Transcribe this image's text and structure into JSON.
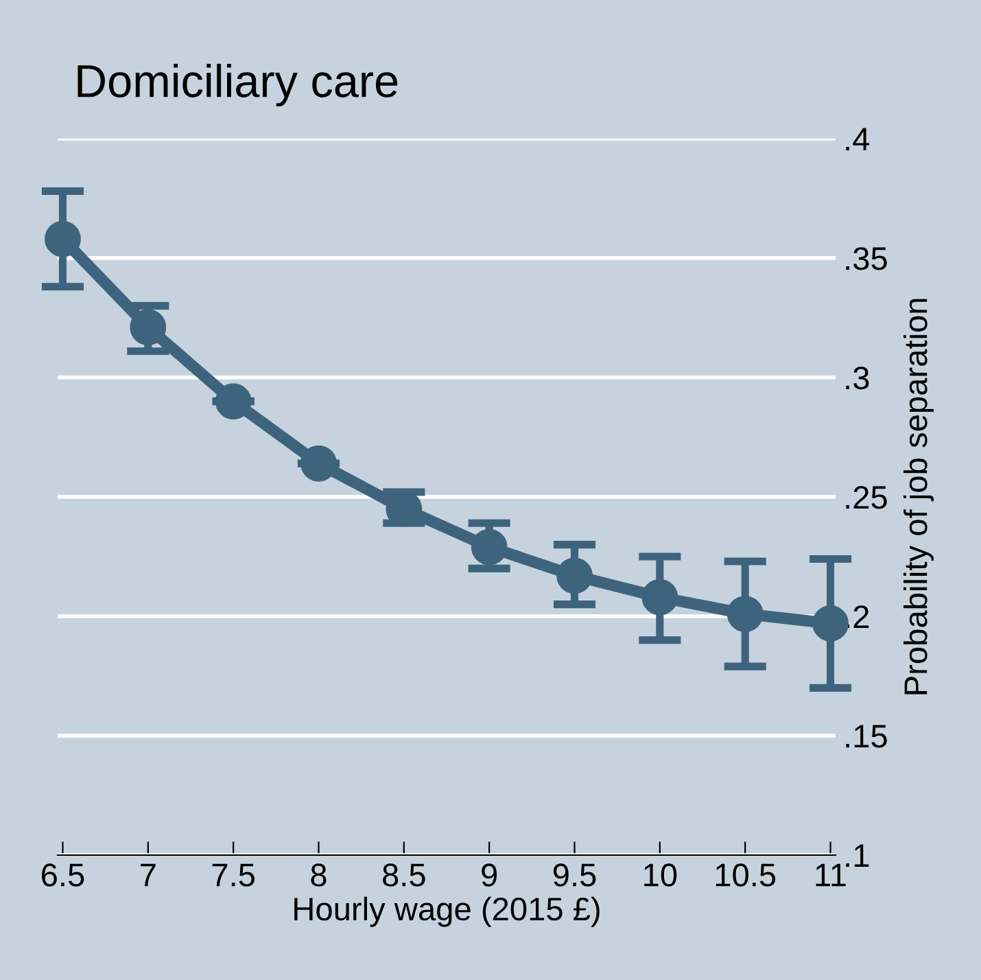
{
  "chart_data": {
    "type": "line",
    "title": "Domiciliary care",
    "xlabel": "Hourly wage (2015 £)",
    "ylabel": "Probability of job separation",
    "x": [
      6.5,
      7,
      7.5,
      8,
      8.5,
      9,
      9.5,
      10,
      10.5,
      11
    ],
    "series": [
      {
        "color": "#3e647d",
        "values": [
          0.358,
          0.321,
          0.29,
          0.264,
          0.245,
          0.229,
          0.217,
          0.208,
          0.201,
          0.197
        ],
        "errors": [
          [
            0.338,
            0.378
          ],
          [
            0.311,
            0.33
          ],
          null,
          null,
          [
            0.239,
            0.252
          ],
          [
            0.22,
            0.239
          ],
          [
            0.205,
            0.23
          ],
          [
            0.19,
            0.225
          ],
          [
            0.179,
            0.223
          ],
          [
            0.17,
            0.224
          ]
        ]
      }
    ],
    "xlim": [
      6.47,
      11.03
    ],
    "ylim": [
      0.1,
      0.4
    ],
    "xticks": [
      6.5,
      7,
      7.5,
      8,
      8.5,
      9,
      9.5,
      10,
      10.5,
      11
    ],
    "yticks": [
      {
        "value": 0.1,
        "label": ".1"
      },
      {
        "value": 0.15,
        "label": ".15"
      },
      {
        "value": 0.2,
        "label": ".2"
      },
      {
        "value": 0.25,
        "label": ".25"
      },
      {
        "value": 0.3,
        "label": ".3"
      },
      {
        "value": 0.35,
        "label": ".35"
      },
      {
        "value": 0.4,
        "label": ".4"
      }
    ],
    "grid": "y",
    "marker": "circle",
    "line_style": "solid"
  }
}
